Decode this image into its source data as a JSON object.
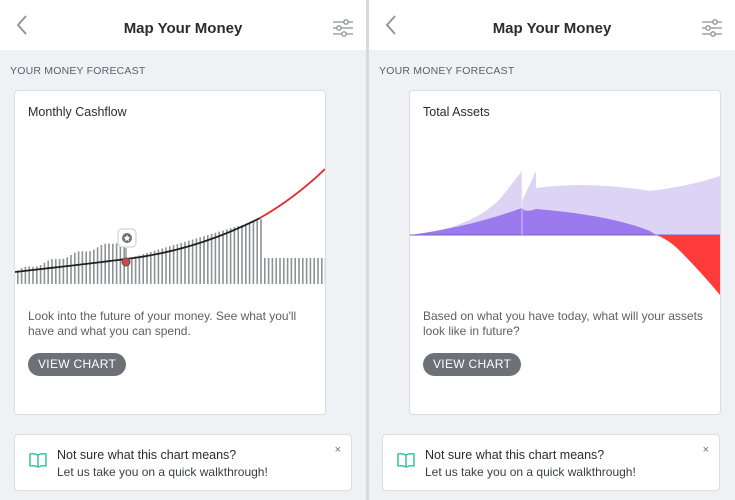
{
  "screens": [
    {
      "nav": {
        "title": "Map Your Money",
        "back_icon": "chevron-left-icon",
        "filter_icon": "sliders-icon"
      },
      "section_label": "YOUR MONEY FORECAST",
      "card": {
        "title": "Monthly Cashflow",
        "description": "Look into the future of your money. See what you'll have and what you can spend.",
        "button": "VIEW CHART",
        "marker_icon": "star-icon",
        "colors": {
          "bars": "#8e9196",
          "line": "#1f2023",
          "future_line": "#e02929",
          "marker": "#d2454e"
        }
      },
      "help": {
        "title": "Not sure what this chart means?",
        "subtitle": "Let us take you on a quick walkthrough!",
        "icon": "open-book-icon",
        "close": "×"
      }
    },
    {
      "nav": {
        "title": "Map Your Money",
        "back_icon": "chevron-left-icon",
        "filter_icon": "sliders-icon"
      },
      "section_label": "YOUR MONEY FORECAST",
      "card": {
        "title": "Total Assets",
        "description": "Based on what you have today, what will your assets look like in future?",
        "button": "VIEW CHART",
        "colors": {
          "total_area": "#ddd3f5",
          "assets_area": "#9b79ef",
          "negative_area": "#ff3b3b"
        }
      },
      "help": {
        "title": "Not sure what this chart means?",
        "subtitle": "Let us take you on a quick walkthrough!",
        "icon": "open-book-icon",
        "close": "×"
      }
    }
  ]
}
